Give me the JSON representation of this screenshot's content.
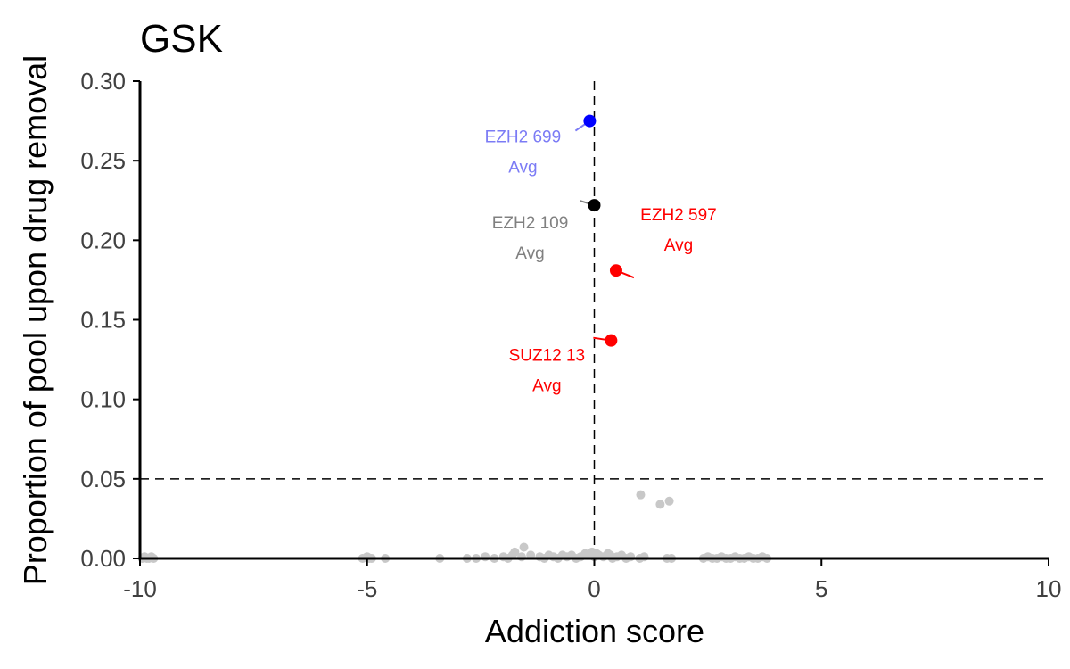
{
  "chart_data": {
    "type": "scatter",
    "title": "GSK",
    "xlabel": "Addiction score",
    "ylabel": "Proportion of pool upon drug removal",
    "xlim": [
      -10,
      10
    ],
    "ylim": [
      0,
      0.3
    ],
    "xticks": [
      "-10",
      "-5",
      "0",
      "5",
      "10"
    ],
    "yticks": [
      "0.00",
      "0.05",
      "0.10",
      "0.15",
      "0.20",
      "0.25",
      "0.30"
    ],
    "reference_lines": {
      "x": 0,
      "y": 0.05,
      "style": "dashed"
    },
    "grid": false,
    "labeled_points": [
      {
        "name": "EZH2 699",
        "sub": "Avg",
        "x": -0.1,
        "y": 0.275,
        "color": "#0000ff",
        "label_color": "#7b7bf5"
      },
      {
        "name": "EZH2 109",
        "sub": "Avg",
        "x": 0.0,
        "y": 0.222,
        "color": "#000000",
        "label_color": "#808080"
      },
      {
        "name": "EZH2 597",
        "sub": "Avg",
        "x": 0.48,
        "y": 0.181,
        "color": "#ff0000",
        "label_color": "#ff0000"
      },
      {
        "name": "SUZ12 13",
        "sub": "Avg",
        "x": 0.37,
        "y": 0.137,
        "color": "#ff0000",
        "label_color": "#ff0000"
      }
    ],
    "background_points": {
      "color": "#c8c8c8",
      "points": [
        [
          -9.95,
          0.0
        ],
        [
          -9.9,
          0.001
        ],
        [
          -9.85,
          0.0
        ],
        [
          -9.8,
          0.0
        ],
        [
          -9.75,
          0.001
        ],
        [
          -9.7,
          0.0
        ],
        [
          -5.1,
          0.0
        ],
        [
          -5.0,
          0.001
        ],
        [
          -4.95,
          0.0
        ],
        [
          -4.9,
          0.0
        ],
        [
          -4.6,
          0.0
        ],
        [
          -3.4,
          0.0
        ],
        [
          -2.8,
          0.0
        ],
        [
          -2.6,
          0.0
        ],
        [
          -2.4,
          0.001
        ],
        [
          -2.2,
          0.0
        ],
        [
          -2.0,
          0.001
        ],
        [
          -1.9,
          0.0
        ],
        [
          -1.8,
          0.002
        ],
        [
          -1.75,
          0.004
        ],
        [
          -1.6,
          0.001
        ],
        [
          -1.55,
          0.007
        ],
        [
          -1.4,
          0.002
        ],
        [
          -1.2,
          0.001
        ],
        [
          -1.1,
          0.0
        ],
        [
          -1.0,
          0.002
        ],
        [
          -0.9,
          0.001
        ],
        [
          -0.8,
          0.0
        ],
        [
          -0.7,
          0.002
        ],
        [
          -0.6,
          0.001
        ],
        [
          -0.5,
          0.002
        ],
        [
          -0.4,
          0.0
        ],
        [
          -0.3,
          0.001
        ],
        [
          -0.2,
          0.003
        ],
        [
          -0.1,
          0.002
        ],
        [
          -0.05,
          0.004
        ],
        [
          0.0,
          0.001
        ],
        [
          0.05,
          0.003
        ],
        [
          0.1,
          0.002
        ],
        [
          0.2,
          0.001
        ],
        [
          0.3,
          0.003
        ],
        [
          0.35,
          0.002
        ],
        [
          0.4,
          0.0
        ],
        [
          0.5,
          0.001
        ],
        [
          0.6,
          0.002
        ],
        [
          0.7,
          0.0
        ],
        [
          0.8,
          0.001
        ],
        [
          1.0,
          0.0
        ],
        [
          1.1,
          0.001
        ],
        [
          1.6,
          0.0
        ],
        [
          1.7,
          0.0
        ],
        [
          1.02,
          0.04
        ],
        [
          1.45,
          0.034
        ],
        [
          1.65,
          0.036
        ],
        [
          2.4,
          0.0
        ],
        [
          2.5,
          0.001
        ],
        [
          2.6,
          0.0
        ],
        [
          2.7,
          0.0
        ],
        [
          2.8,
          0.001
        ],
        [
          2.9,
          0.0
        ],
        [
          3.0,
          0.0
        ],
        [
          3.1,
          0.001
        ],
        [
          3.2,
          0.0
        ],
        [
          3.3,
          0.0
        ],
        [
          3.4,
          0.001
        ],
        [
          3.5,
          0.0
        ],
        [
          3.6,
          0.0
        ],
        [
          3.7,
          0.001
        ],
        [
          3.8,
          0.0
        ]
      ]
    }
  }
}
